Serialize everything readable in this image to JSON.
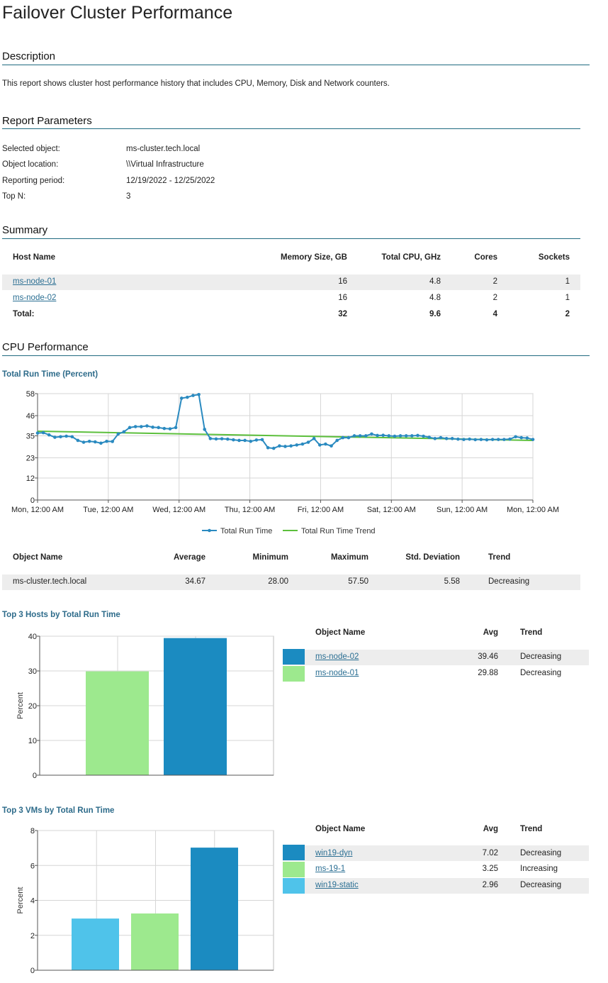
{
  "title": "Failover Cluster Performance",
  "description": {
    "heading": "Description",
    "text": "This report shows cluster host performance history that includes CPU, Memory, Disk and Network counters."
  },
  "parameters": {
    "heading": "Report Parameters",
    "items": [
      {
        "label": "Selected object:",
        "value": "ms-cluster.tech.local"
      },
      {
        "label": "Object location:",
        "value": "\\\\Virtual Infrastructure"
      },
      {
        "label": "Reporting period:",
        "value": "12/19/2022 - 12/25/2022"
      },
      {
        "label": "Top N:",
        "value": "3"
      }
    ]
  },
  "summary": {
    "heading": "Summary",
    "columns": [
      "Host Name",
      "Memory Size, GB",
      "Total CPU, GHz",
      "Cores",
      "Sockets"
    ],
    "rows": [
      {
        "host": "ms-node-01",
        "memory": "16",
        "cpu": "4.8",
        "cores": "2",
        "sockets": "1"
      },
      {
        "host": "ms-node-02",
        "memory": "16",
        "cpu": "4.8",
        "cores": "2",
        "sockets": "1"
      }
    ],
    "total": {
      "label": "Total:",
      "memory": "32",
      "cpu": "9.6",
      "cores": "4",
      "sockets": "2"
    }
  },
  "cpu": {
    "heading": "CPU Performance",
    "run_time_chart_title": "Total Run Time (Percent)",
    "stats_columns": [
      "Object Name",
      "Average",
      "Minimum",
      "Maximum",
      "Std. Deviation",
      "Trend"
    ],
    "stats_row": {
      "name": "ms-cluster.tech.local",
      "average": "34.67",
      "minimum": "28.00",
      "maximum": "57.50",
      "std": "5.58",
      "trend": "Decreasing"
    },
    "hosts_title": "Top 3 Hosts by Total Run Time",
    "hosts_columns": [
      "Object Name",
      "Avg",
      "Trend"
    ],
    "hosts": [
      {
        "name": "ms-node-02",
        "avg": "39.46",
        "trend": "Decreasing",
        "color": "#1b8bc1"
      },
      {
        "name": "ms-node-01",
        "avg": "29.88",
        "trend": "Decreasing",
        "color": "#9de98e"
      }
    ],
    "vms_title": "Top 3 VMs by Total Run Time",
    "vms_columns": [
      "Object Name",
      "Avg",
      "Trend"
    ],
    "vms": [
      {
        "name": "win19-dyn",
        "avg": "7.02",
        "trend": "Decreasing",
        "color": "#1b8bc1"
      },
      {
        "name": "ms-19-1",
        "avg": "3.25",
        "trend": "Increasing",
        "color": "#9de98e"
      },
      {
        "name": "win19-static",
        "avg": "2.96",
        "trend": "Decreasing",
        "color": "#4fc3ea"
      }
    ]
  },
  "chart_data": [
    {
      "type": "line",
      "title": "Total Run Time (Percent)",
      "x_ticks": [
        "Mon, 12:00 AM",
        "Tue, 12:00 AM",
        "Wed, 12:00 AM",
        "Thu, 12:00 AM",
        "Fri, 12:00 AM",
        "Sat, 12:00 AM",
        "Sun, 12:00 AM",
        "Mon, 12:00 AM"
      ],
      "x_range_days": [
        0,
        7
      ],
      "y_ticks": [
        0,
        12,
        23,
        35,
        46,
        58
      ],
      "ylim": [
        0,
        58
      ],
      "grid": true,
      "legend_position": "bottom",
      "series": [
        {
          "name": "Total Run Time",
          "color": "#2a8ac0",
          "values": [
            36.5,
            36.7,
            35.5,
            34.2,
            34.5,
            34.8,
            34.5,
            32.5,
            31.5,
            32.0,
            31.7,
            31.0,
            32.0,
            31.9,
            36.0,
            37.2,
            39.5,
            40.0,
            40.0,
            40.4,
            39.7,
            39.5,
            39.0,
            38.8,
            39.5,
            55.5,
            56.0,
            57.0,
            57.5,
            38.5,
            33.5,
            33.3,
            33.4,
            33.2,
            32.8,
            32.5,
            32.5,
            32.0,
            32.7,
            32.9,
            28.5,
            28.2,
            29.5,
            29.2,
            29.5,
            30.0,
            30.5,
            31.5,
            33.5,
            30.0,
            30.5,
            29.5,
            32.5,
            34.0,
            34.0,
            35.0,
            35.0,
            35.0,
            36.0,
            35.2,
            35.3,
            35.0,
            34.8,
            35.0,
            35.0,
            35.0,
            35.2,
            34.8,
            34.2,
            33.5,
            34.0,
            33.5,
            33.5,
            33.2,
            33.0,
            33.2,
            32.9,
            33.0,
            32.8,
            33.0,
            33.0,
            33.0,
            33.2,
            34.5,
            34.0,
            33.8,
            33.0
          ]
        },
        {
          "name": "Total Run Time Trend",
          "color": "#5cbf3c",
          "values": [
            37.5,
            32.5
          ]
        }
      ]
    },
    {
      "type": "bar",
      "title": "Top 3 Hosts by Total Run Time",
      "categories": [
        "ms-node-01",
        "ms-node-02"
      ],
      "values": [
        29.88,
        39.46
      ],
      "colors": [
        "#9de98e",
        "#1b8bc1"
      ],
      "ylabel": "Percent",
      "ylim": [
        0,
        40
      ],
      "y_ticks": [
        0,
        10,
        20,
        30,
        40
      ],
      "grid": true
    },
    {
      "type": "bar",
      "title": "Top 3 VMs by Total Run Time",
      "categories": [
        "win19-static",
        "ms-19-1",
        "win19-dyn"
      ],
      "values": [
        2.96,
        3.25,
        7.02
      ],
      "colors": [
        "#4fc3ea",
        "#9de98e",
        "#1b8bc1"
      ],
      "ylabel": "Percent",
      "ylim": [
        0,
        8
      ],
      "y_ticks": [
        0,
        2,
        4,
        6,
        8
      ],
      "grid": true
    }
  ]
}
